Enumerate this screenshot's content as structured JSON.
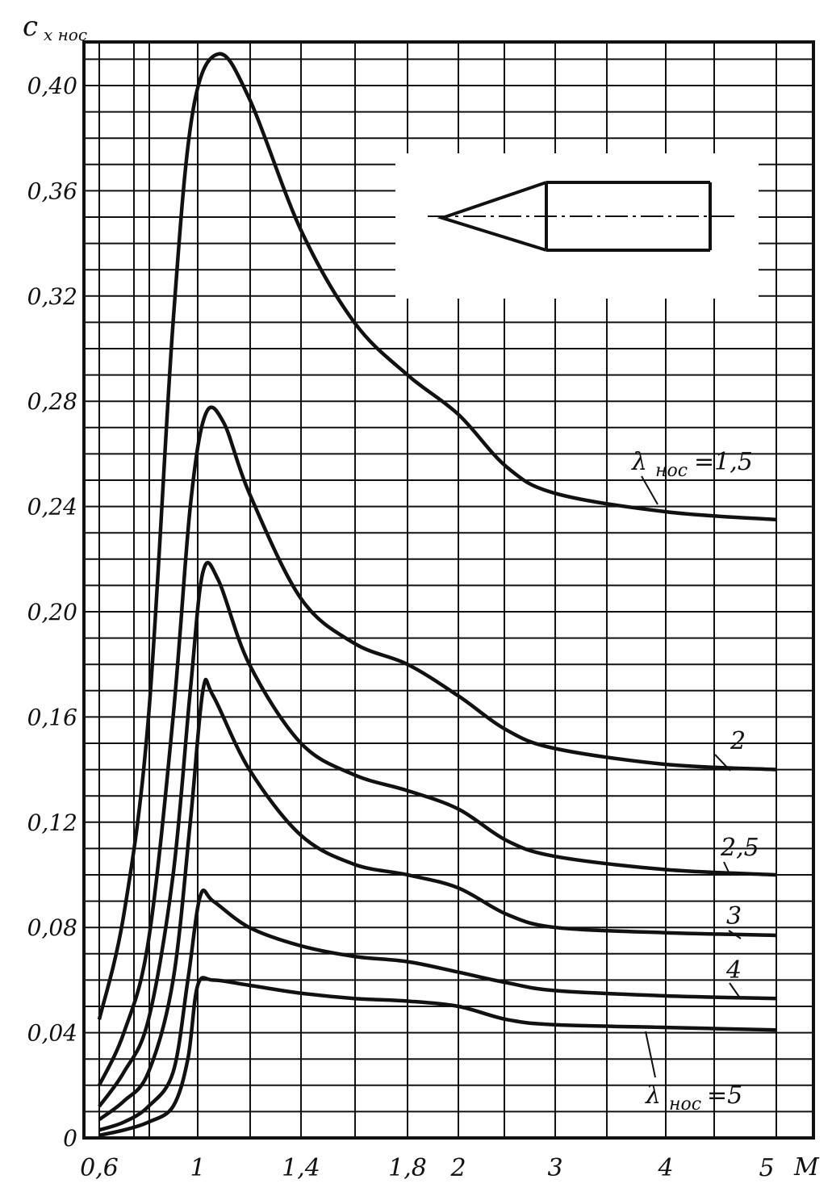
{
  "chart_data": {
    "type": "line",
    "title": "",
    "ylabel": "c",
    "ylabel_sub": "x нос",
    "xlabel": "M",
    "ylim": [
      0,
      0.44
    ],
    "grid": true,
    "x_tick_labels": [
      "0,6",
      "1",
      "1,4",
      "1,8",
      "2",
      "3",
      "4",
      "5"
    ],
    "y_tick_labels": [
      "0",
      "0,04",
      "0,08",
      "0,12",
      "0,16",
      "0,20",
      "0,24",
      "0,28",
      "0,32",
      "0,36",
      "0,40"
    ],
    "y_tick_values": [
      0,
      0.04,
      0.08,
      0.12,
      0.16,
      0.2,
      0.24,
      0.28,
      0.32,
      0.36,
      0.4
    ],
    "series": [
      {
        "name": "λнос=1,5",
        "label": "1,5",
        "points": [
          [
            0.6,
            0.045
          ],
          [
            0.7,
            0.085
          ],
          [
            0.8,
            0.16
          ],
          [
            0.9,
            0.31
          ],
          [
            0.98,
            0.39
          ],
          [
            1.08,
            0.412
          ],
          [
            1.2,
            0.395
          ],
          [
            1.4,
            0.345
          ],
          [
            1.6,
            0.31
          ],
          [
            1.8,
            0.29
          ],
          [
            2.0,
            0.275
          ],
          [
            2.5,
            0.255
          ],
          [
            3.0,
            0.245
          ],
          [
            4.0,
            0.238
          ],
          [
            5.0,
            0.235
          ]
        ]
      },
      {
        "name": "2",
        "label": "2",
        "points": [
          [
            0.6,
            0.02
          ],
          [
            0.7,
            0.04
          ],
          [
            0.8,
            0.075
          ],
          [
            0.9,
            0.16
          ],
          [
            0.97,
            0.24
          ],
          [
            1.03,
            0.275
          ],
          [
            1.1,
            0.272
          ],
          [
            1.2,
            0.245
          ],
          [
            1.4,
            0.205
          ],
          [
            1.6,
            0.188
          ],
          [
            1.8,
            0.18
          ],
          [
            2.0,
            0.168
          ],
          [
            2.5,
            0.155
          ],
          [
            3.0,
            0.148
          ],
          [
            4.0,
            0.142
          ],
          [
            5.0,
            0.14
          ]
        ]
      },
      {
        "name": "2,5",
        "label": "2,5",
        "points": [
          [
            0.6,
            0.012
          ],
          [
            0.7,
            0.025
          ],
          [
            0.8,
            0.045
          ],
          [
            0.9,
            0.1
          ],
          [
            0.97,
            0.17
          ],
          [
            1.02,
            0.215
          ],
          [
            1.08,
            0.212
          ],
          [
            1.2,
            0.18
          ],
          [
            1.4,
            0.15
          ],
          [
            1.6,
            0.138
          ],
          [
            1.8,
            0.132
          ],
          [
            2.0,
            0.125
          ],
          [
            2.5,
            0.113
          ],
          [
            3.0,
            0.107
          ],
          [
            4.0,
            0.102
          ],
          [
            5.0,
            0.1
          ]
        ]
      },
      {
        "name": "3",
        "label": "3",
        "points": [
          [
            0.6,
            0.007
          ],
          [
            0.7,
            0.014
          ],
          [
            0.8,
            0.025
          ],
          [
            0.9,
            0.06
          ],
          [
            0.97,
            0.12
          ],
          [
            1.02,
            0.17
          ],
          [
            1.06,
            0.168
          ],
          [
            1.2,
            0.14
          ],
          [
            1.4,
            0.115
          ],
          [
            1.6,
            0.104
          ],
          [
            1.8,
            0.1
          ],
          [
            2.0,
            0.095
          ],
          [
            2.5,
            0.085
          ],
          [
            3.0,
            0.08
          ],
          [
            4.0,
            0.078
          ],
          [
            5.0,
            0.077
          ]
        ]
      },
      {
        "name": "4",
        "label": "4",
        "points": [
          [
            0.6,
            0.003
          ],
          [
            0.7,
            0.006
          ],
          [
            0.8,
            0.012
          ],
          [
            0.9,
            0.025
          ],
          [
            0.96,
            0.06
          ],
          [
            1.01,
            0.092
          ],
          [
            1.06,
            0.09
          ],
          [
            1.2,
            0.08
          ],
          [
            1.4,
            0.073
          ],
          [
            1.6,
            0.069
          ],
          [
            1.8,
            0.067
          ],
          [
            2.0,
            0.063
          ],
          [
            2.5,
            0.059
          ],
          [
            3.0,
            0.056
          ],
          [
            4.0,
            0.054
          ],
          [
            5.0,
            0.053
          ]
        ]
      },
      {
        "name": "λнос=5",
        "label": "5",
        "points": [
          [
            0.6,
            0.001
          ],
          [
            0.7,
            0.003
          ],
          [
            0.8,
            0.006
          ],
          [
            0.9,
            0.012
          ],
          [
            0.96,
            0.03
          ],
          [
            1.0,
            0.058
          ],
          [
            1.06,
            0.06
          ],
          [
            1.2,
            0.058
          ],
          [
            1.4,
            0.055
          ],
          [
            1.6,
            0.053
          ],
          [
            1.8,
            0.052
          ],
          [
            2.0,
            0.05
          ],
          [
            2.5,
            0.045
          ],
          [
            3.0,
            0.043
          ],
          [
            4.0,
            0.042
          ],
          [
            5.0,
            0.041
          ]
        ]
      }
    ],
    "annotations": {
      "lambda_symbol": "λ",
      "lambda_sub": "нос",
      "label_top": "=1,5",
      "label_bottom": "=5",
      "label_2": "2",
      "label_25": "2,5",
      "label_3": "3",
      "label_4": "4"
    }
  },
  "colors": {
    "ink": "#111111",
    "paper": "#ffffff"
  }
}
